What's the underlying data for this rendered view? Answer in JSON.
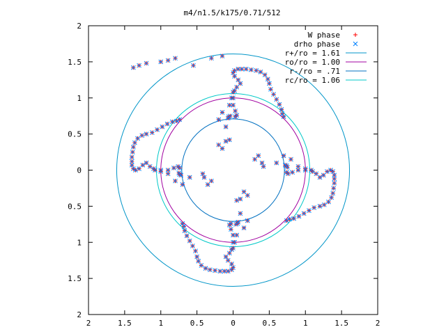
{
  "chart_data": {
    "type": "scatter",
    "title": "m4/n1.5/k175/0.71/512",
    "xlabel": "",
    "ylabel": "",
    "xlim": [
      -2,
      2
    ],
    "ylim": [
      -2,
      2
    ],
    "x_tick_labels": [
      "2",
      "1.5",
      "1",
      "0.5",
      "0",
      "0.5",
      "1",
      "1.5",
      "2"
    ],
    "y_tick_labels": [
      "2",
      "1.5",
      "1",
      "0.5",
      "0",
      "0.5",
      "1",
      "1.5",
      "2"
    ],
    "grid": false,
    "legend_position": "top-right",
    "legend": [
      {
        "label": "W phase",
        "marker": "plus",
        "color": "#ff0000"
      },
      {
        "label": "drho phase",
        "marker": "x",
        "color": "#0080ff"
      },
      {
        "label": "r+/ro = 1.61",
        "marker": "line",
        "color": "#0095c8"
      },
      {
        "label": "ro/ro = 1.00",
        "marker": "line",
        "color": "#a000a0"
      },
      {
        "label": "r-/ro = .71",
        "marker": "line",
        "color": "#0070c0"
      },
      {
        "label": "rc/ro = 1.06",
        "marker": "line",
        "color": "#00c8c8"
      }
    ],
    "circles": [
      {
        "name": "r+/ro",
        "radius": 1.61,
        "color": "#0095c8"
      },
      {
        "name": "ro/ro",
        "radius": 1.0,
        "color": "#a000a0"
      },
      {
        "name": "r-/ro",
        "radius": 0.71,
        "color": "#0070c0"
      },
      {
        "name": "rc/ro",
        "radius": 1.06,
        "color": "#00c8c8"
      }
    ],
    "spiral_arms": {
      "count": 4,
      "description_points": [
        {
          "x": -0.05,
          "y": 0.72
        },
        {
          "x": 0.05,
          "y": 0.9
        },
        {
          "x": 0.1,
          "y": 1.2
        },
        {
          "x": 0.05,
          "y": 1.4
        },
        {
          "x": 0.2,
          "y": 1.4
        },
        {
          "x": 0.4,
          "y": 1.38
        },
        {
          "x": 0.55,
          "y": 1.25
        },
        {
          "x": 0.65,
          "y": 1.05
        },
        {
          "x": 0.7,
          "y": 0.85
        },
        {
          "x": 0.72,
          "y": 0.7
        }
      ]
    },
    "series": [
      {
        "name": "W phase",
        "color": "#ff0000",
        "marker": "plus"
      },
      {
        "name": "drho phase",
        "color": "#0080ff",
        "marker": "x"
      }
    ]
  }
}
